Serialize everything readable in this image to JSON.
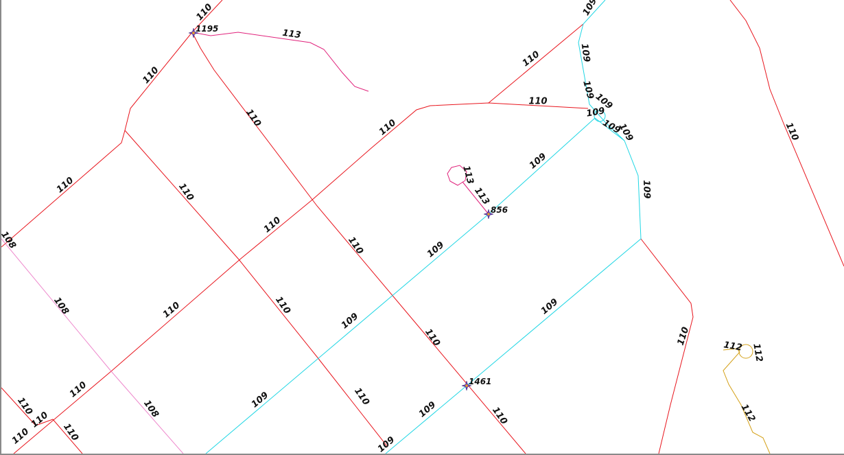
{
  "colors": {
    "route_110": "#e8141c",
    "route_109": "#1fd6e4",
    "route_113": "#e0207a",
    "route_108": "#ee88cc",
    "route_112": "#d4a017",
    "marker_star": "#6a3fb5",
    "marker_center": "#f0a020"
  },
  "road_labels": {
    "r110": "110",
    "r109": "109",
    "r113": "113",
    "r108": "108",
    "r112": "112"
  },
  "points": [
    {
      "name": "point-1195",
      "label": "1195"
    },
    {
      "name": "point-856",
      "label": "856"
    },
    {
      "name": "point-1461",
      "label": "1461"
    }
  ],
  "marker_icon": "star-marker-icon"
}
